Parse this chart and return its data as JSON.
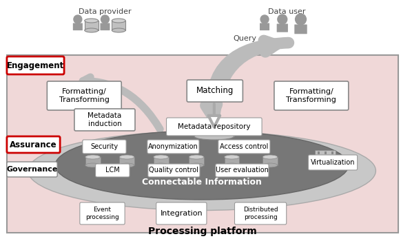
{
  "bg_color": "#f0d8d8",
  "dark_ellipse_color": "#777777",
  "light_ellipse_color": "#b0b0b0",
  "box_color": "#ffffff",
  "box_edge": "#888888",
  "red_box_edge": "#cc0000",
  "title": "Processing platform",
  "connectable_text": "Connectable Information",
  "labels": {
    "data_provider": "Data provider",
    "data_user": "Data user",
    "query": "Query",
    "engagement": "Engagement",
    "assurance": "Assurance",
    "governance": "Governance",
    "formatting_left": "Formatting/\nTransforming",
    "matching": "Matching",
    "formatting_right": "Formatting/\nTransforming",
    "metadata_induction": "Metadata\ninduction",
    "metadata_repo": "Metadata repository",
    "security": "Security",
    "anonymization": "Anonymization",
    "access_control": "Access control",
    "lcm": "LCM",
    "quality_control": "Quality control",
    "user_evaluation": "User evaluation",
    "virtualization": "Virtualization",
    "event_processing": "Event\nprocessing",
    "integration": "Integration",
    "distributed_processing": "Distributed\nprocessing"
  },
  "icon_color": "#999999",
  "db_color": "#b8b8b8",
  "db_edge": "#888888",
  "arrow_color": "#bbbbbb",
  "white_arrow_color": "#ffffff",
  "white_arrow_edge": "#aaaaaa"
}
